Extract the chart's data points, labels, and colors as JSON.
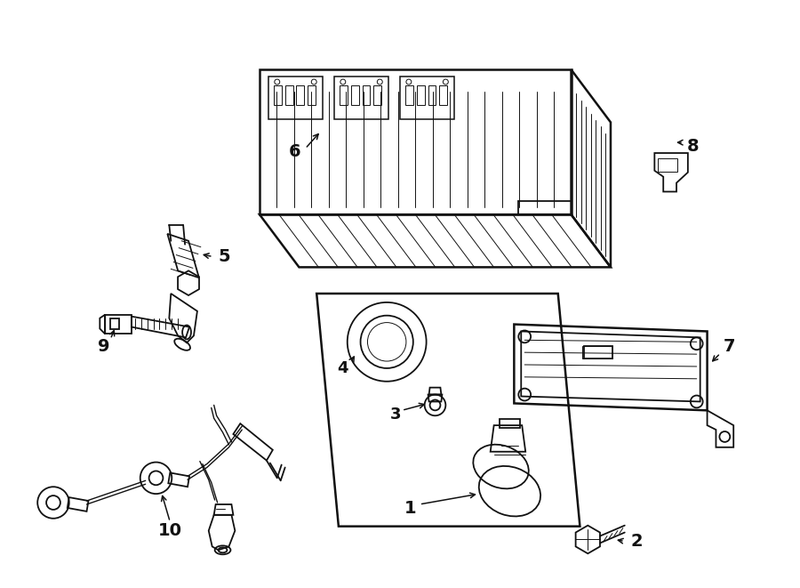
{
  "bg_color": "#ffffff",
  "line_color": "#111111",
  "fig_width": 9.0,
  "fig_height": 6.61,
  "lw_main": 1.3,
  "lw_thin": 0.7,
  "lw_thick": 1.8
}
